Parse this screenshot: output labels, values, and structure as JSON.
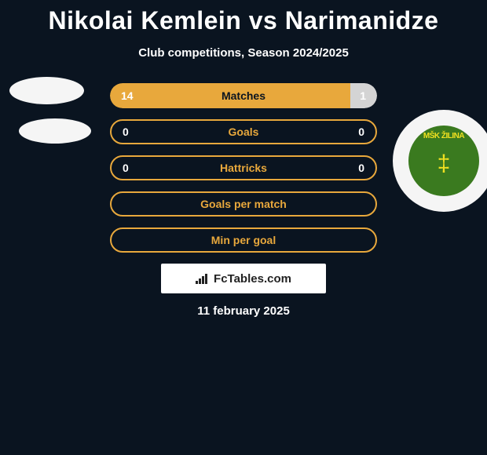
{
  "title": "Nikolai Kemlein vs Narimanidze",
  "subtitle": "Club competitions, Season 2024/2025",
  "stats": [
    {
      "label": "Matches",
      "left_value": "14",
      "right_value": "1",
      "left_pct": 90,
      "right_pct": 10,
      "show_fill": true,
      "left_color": "#e8a83c",
      "right_color": "#d4d4d4"
    },
    {
      "label": "Goals",
      "left_value": "0",
      "right_value": "0",
      "show_fill": false
    },
    {
      "label": "Hattricks",
      "left_value": "0",
      "right_value": "0",
      "show_fill": false
    },
    {
      "label": "Goals per match",
      "left_value": "",
      "right_value": "",
      "show_fill": false
    },
    {
      "label": "Min per goal",
      "left_value": "",
      "right_value": "",
      "show_fill": false
    }
  ],
  "club": {
    "name": "MŠK ŽILINA",
    "badge_bg": "#3a7a1f",
    "badge_accent": "#f0e020"
  },
  "fctables_label": "FcTables.com",
  "date": "11 february 2025",
  "colors": {
    "background": "#0a1420",
    "accent": "#e8a83c",
    "white": "#ffffff",
    "gray": "#d4d4d4"
  }
}
